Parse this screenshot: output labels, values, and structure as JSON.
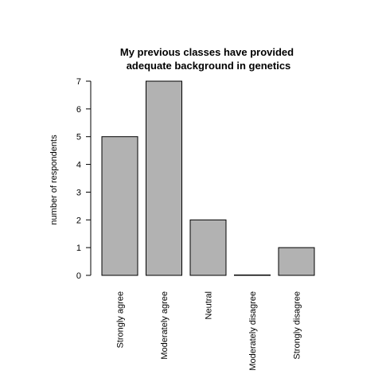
{
  "chart_data": {
    "type": "bar",
    "title_lines": [
      "My previous classes have provided",
      "adequate background in genetics"
    ],
    "xlabel": "",
    "ylabel": "number of respondents",
    "categories": [
      "Strongly agree",
      "Moderately agree",
      "Neutral",
      "Moderately disagree",
      "Strongly disagree"
    ],
    "values": [
      5,
      7,
      2,
      0,
      1
    ],
    "ylim": [
      0,
      7
    ],
    "yticks": [
      0,
      1,
      2,
      3,
      4,
      5,
      6,
      7
    ],
    "grid": false,
    "bar_color": "#b2b2b2",
    "bar_edge_color": "#000000"
  }
}
